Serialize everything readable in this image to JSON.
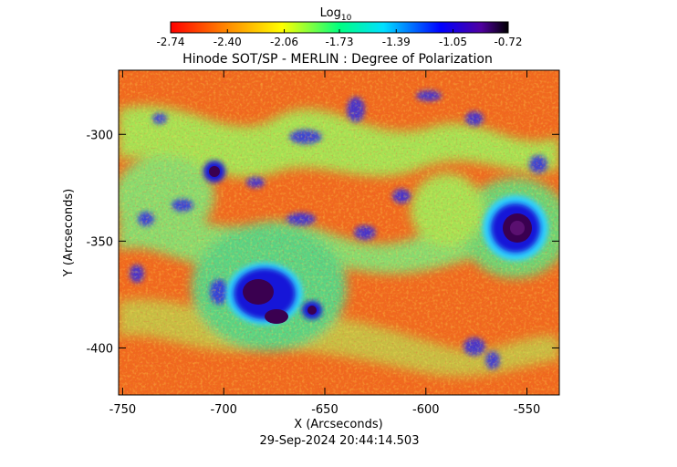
{
  "chart_data": {
    "type": "heatmap",
    "title": "Hinode SOT/SP - MERLIN : Degree of Polarization",
    "xlabel": "X (Arcseconds)",
    "ylabel": "Y (Arcseconds)",
    "timestamp": "29-Sep-2024 20:44:14.503",
    "colorbar": {
      "label": "Log",
      "label_subscript": "10",
      "colormap": "rainbow",
      "range": [
        -2.74,
        -0.72
      ],
      "ticks": [
        -2.74,
        -2.4,
        -2.06,
        -1.73,
        -1.39,
        -1.05,
        -0.72
      ],
      "tick_labels": [
        "-2.74",
        "-2.40",
        "-2.06",
        "-1.73",
        "-1.39",
        "-1.05",
        "-0.72"
      ]
    },
    "xlim": [
      -752,
      -534
    ],
    "ylim": [
      -422,
      -270
    ],
    "xticks": [
      -750,
      -700,
      -650,
      -600,
      -550
    ],
    "xtick_labels": [
      "-750",
      "-700",
      "-650",
      "-600",
      "-550"
    ],
    "yticks": [
      -300,
      -350,
      -400
    ],
    "ytick_labels": [
      "-300",
      "-350",
      "-400"
    ],
    "colors": {
      "background_field": "#f06a1e",
      "sunspot_umbra": "#3a0050",
      "sunspot_penumbra": "#1414d8"
    }
  }
}
